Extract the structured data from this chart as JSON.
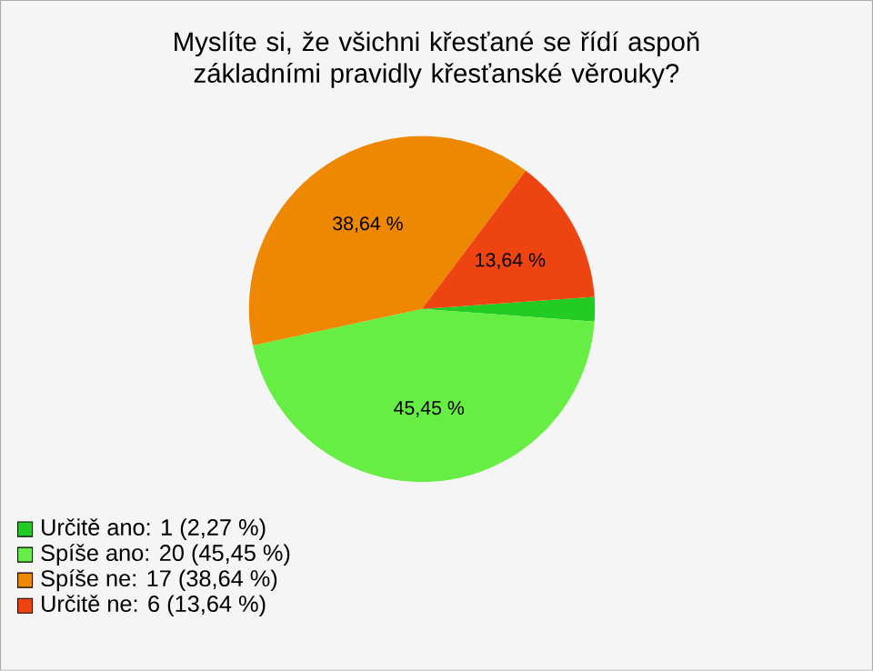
{
  "chart_data": {
    "type": "pie",
    "title": "Myslíte si, že všichni křesťané se řídí aspoň základními pravidly křesťanské věrouky?",
    "categories": [
      "Určitě ano: 1 (2,27 %)",
      "Spíše ano: 20 (45,45 %)",
      "Spíše ne: 17 (38,64 %)",
      "Určitě ne: 6 (13,64 %)"
    ],
    "values": [
      2.27,
      45.45,
      38.64,
      13.64
    ],
    "value_labels": [
      null,
      "45,45 %",
      "38,64 %",
      "13,64 %"
    ],
    "colors": [
      "#22cc22",
      "#66ee44",
      "#ee8800",
      "#ee4411"
    ],
    "legend": "bottom left"
  }
}
